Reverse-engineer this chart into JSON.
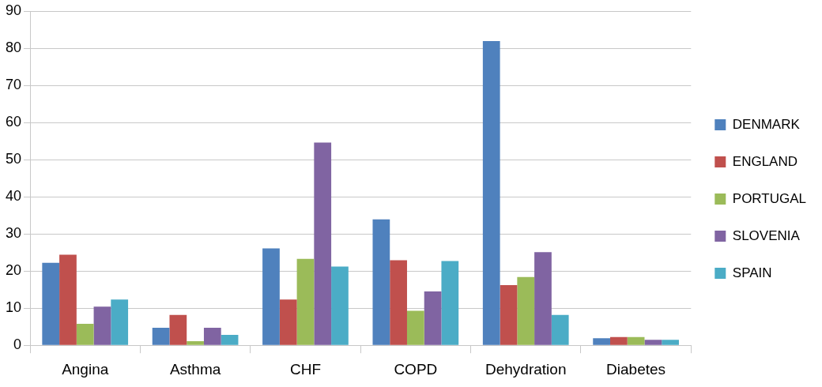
{
  "chart_data": {
    "type": "bar",
    "categories": [
      "Angina",
      "Asthma",
      "CHF",
      "COPD",
      "Dehydration",
      "Diabetes"
    ],
    "series": [
      {
        "name": "DENMARK",
        "color": "#4f81bd",
        "values": [
          22.2,
          4.7,
          26.1,
          33.9,
          81.9,
          1.9
        ]
      },
      {
        "name": "ENGLAND",
        "color": "#c0504d",
        "values": [
          24.4,
          8.2,
          12.3,
          22.9,
          16.2,
          2.2
        ]
      },
      {
        "name": "PORTUGAL",
        "color": "#9bbb59",
        "values": [
          5.8,
          1.1,
          23.3,
          9.3,
          18.4,
          2.2
        ]
      },
      {
        "name": "SLOVENIA",
        "color": "#8064a2",
        "values": [
          10.4,
          4.7,
          54.6,
          14.5,
          25.1,
          1.5
        ]
      },
      {
        "name": "SPAIN",
        "color": "#4bacc6",
        "values": [
          12.3,
          2.8,
          21.2,
          22.7,
          8.2,
          1.5
        ]
      }
    ],
    "ylim": [
      0,
      90
    ],
    "yticks": [
      0,
      10,
      20,
      30,
      40,
      50,
      60,
      70,
      80,
      90
    ],
    "grid": "y",
    "legend": "right"
  }
}
